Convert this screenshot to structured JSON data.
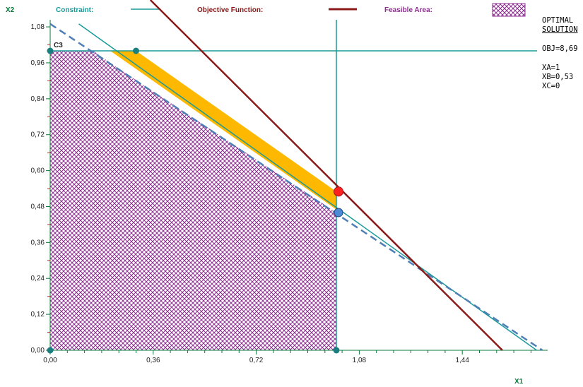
{
  "chart_data": {
    "type": "scatter",
    "xlabel": "X1",
    "ylabel": "X2",
    "xlim": [
      0,
      1.72
    ],
    "ylim": [
      0,
      1.08
    ],
    "x_ticks": [
      "0,00",
      "0,36",
      "0,72",
      "1,08",
      "1,44"
    ],
    "y_ticks": [
      "0,00",
      "0,12",
      "0,24",
      "0,36",
      "0,48",
      "0,60",
      "0,72",
      "0,84",
      "0,96",
      "1,08"
    ],
    "legend": {
      "constraint": "Constraint:",
      "objective": "Objective Function:",
      "feasible": "Feasible Area:"
    },
    "constraint_label": "C3",
    "constraints": [
      {
        "name": "vertical",
        "x": 1.0
      },
      {
        "name": "horizontal",
        "y": 1.0
      },
      {
        "name": "diagonal",
        "points": [
          [
            0.1,
            1.09
          ],
          [
            1.7,
            0.0
          ]
        ]
      }
    ],
    "dashed_line": {
      "points": [
        [
          0.0,
          1.09
        ],
        [
          1.72,
          0.0
        ]
      ]
    },
    "objective_line": {
      "points": [
        [
          0.35,
          1.17
        ],
        [
          1.58,
          0.0
        ]
      ]
    },
    "feasible_area": [
      [
        0.0,
        0.0
      ],
      [
        1.0,
        0.0
      ],
      [
        1.0,
        0.46
      ],
      [
        0.24,
        0.94
      ],
      [
        0.15,
        1.0
      ],
      [
        0.0,
        1.0
      ]
    ],
    "optimal_band": [
      [
        0.21,
        1.0
      ],
      [
        0.3,
        1.0
      ],
      [
        1.0,
        0.53
      ],
      [
        1.0,
        0.47
      ]
    ],
    "optimal_point": {
      "x": 1.0,
      "y": 0.53
    },
    "alt_point": {
      "x": 1.0,
      "y": 0.46
    },
    "vertices": [
      {
        "x": 0.0,
        "y": 0.0
      },
      {
        "x": 1.0,
        "y": 0.0
      },
      {
        "x": 0.0,
        "y": 1.0
      },
      {
        "x": 0.3,
        "y": 1.0
      }
    ],
    "colors": {
      "constraint": "#1a9a9a",
      "objective": "#8b1a1a",
      "dashed": "#4f7fb5",
      "feasible": "#8b2f8f",
      "band": "#ffb800",
      "optimal_point": "#ff2020",
      "alt_point": "#4d8ad4",
      "vertex": "#1a7f7f"
    }
  },
  "solution": {
    "heading1": "OPTIMAL",
    "heading2": "SOLUTION",
    "obj": "OBJ=8,69",
    "xa": "XA=1",
    "xb": "XB=0,53",
    "xc": "XC=0"
  }
}
